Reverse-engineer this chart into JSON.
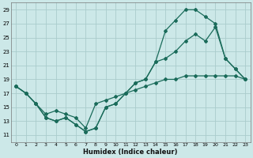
{
  "xlabel": "Humidex (Indice chaleur)",
  "background_color": "#cce8e8",
  "grid_color": "#aacccc",
  "line_color": "#1a6b5a",
  "xlim": [
    -0.5,
    23.5
  ],
  "ylim": [
    10,
    30
  ],
  "yticks": [
    11,
    13,
    15,
    17,
    19,
    21,
    23,
    25,
    27,
    29
  ],
  "xticks": [
    0,
    1,
    2,
    3,
    4,
    5,
    6,
    7,
    8,
    9,
    10,
    11,
    12,
    13,
    14,
    15,
    16,
    17,
    18,
    19,
    20,
    21,
    22,
    23
  ],
  "line1_x": [
    0,
    1,
    2,
    3,
    4,
    5,
    6,
    7,
    8,
    9,
    10,
    11,
    12,
    13,
    14,
    15,
    16,
    17,
    18,
    19,
    20,
    21,
    22,
    23
  ],
  "line1_y": [
    18.0,
    17.0,
    15.5,
    14.0,
    14.5,
    14.0,
    13.5,
    12.0,
    15.5,
    16.0,
    16.5,
    17.0,
    17.5,
    18.0,
    18.5,
    19.0,
    19.0,
    19.5,
    19.5,
    19.5,
    19.5,
    19.5,
    19.5,
    19.0
  ],
  "line2_x": [
    0,
    1,
    2,
    3,
    4,
    5,
    6,
    7,
    8,
    9,
    10,
    11,
    12,
    13,
    14,
    15,
    16,
    17,
    18,
    19,
    20,
    21,
    22,
    23
  ],
  "line2_y": [
    18.0,
    17.0,
    15.5,
    13.5,
    13.0,
    13.5,
    12.5,
    11.5,
    12.0,
    15.0,
    15.5,
    17.0,
    18.5,
    19.0,
    21.5,
    22.0,
    23.0,
    24.5,
    25.5,
    24.5,
    26.5,
    22.0,
    20.5,
    19.0
  ],
  "line3_x": [
    0,
    1,
    2,
    3,
    4,
    5,
    6,
    7,
    8,
    9,
    10,
    11,
    12,
    13,
    14,
    15,
    16,
    17,
    18,
    19,
    20,
    21,
    22,
    23
  ],
  "line3_y": [
    18.0,
    17.0,
    15.5,
    13.5,
    13.0,
    13.5,
    12.5,
    11.5,
    12.0,
    15.0,
    15.5,
    17.0,
    18.5,
    19.0,
    21.5,
    26.0,
    27.5,
    29.0,
    29.0,
    28.0,
    27.0,
    22.0,
    20.5,
    19.0
  ]
}
